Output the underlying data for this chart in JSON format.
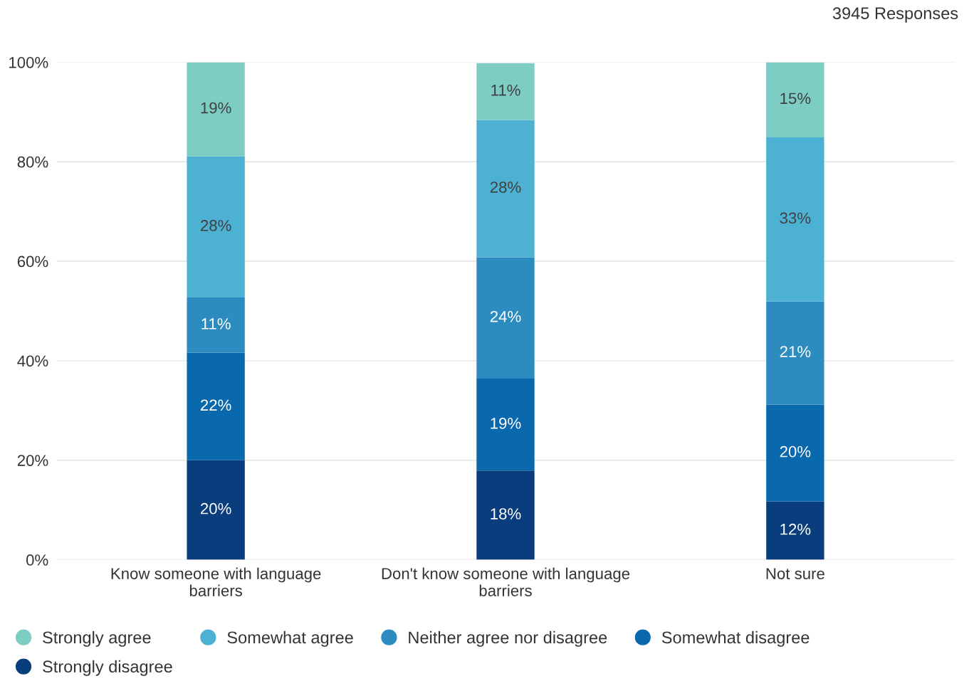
{
  "chart_data": {
    "type": "bar",
    "title": "3945 Responses",
    "stacked": true,
    "categories": [
      "Know someone with language barriers",
      "Don't know someone with language barriers",
      "Not sure"
    ],
    "series": [
      {
        "name": "Strongly disagree",
        "color": "#0a3d7d",
        "values": [
          20,
          17.9,
          11.7
        ],
        "value_labels": [
          "20%",
          "18%",
          "12%"
        ]
      },
      {
        "name": "Somewhat disagree",
        "color": "#0a69ac",
        "values": [
          21.6,
          18.5,
          19.5
        ],
        "value_labels": [
          "22%",
          "19%",
          "20%"
        ]
      },
      {
        "name": "Neither agree nor disagree",
        "color": "#2d8cbf",
        "values": [
          11.1,
          24.4,
          20.7
        ],
        "value_labels": [
          "11%",
          "24%",
          "21%"
        ]
      },
      {
        "name": "Somewhat agree",
        "color": "#4db1d3",
        "values": [
          28.4,
          27.6,
          33.0
        ],
        "value_labels": [
          "28%",
          "28%",
          "33%"
        ]
      },
      {
        "name": "Strongly agree",
        "color": "#7dcdc4",
        "values": [
          18.9,
          11.4,
          15.1
        ],
        "value_labels": [
          "19%",
          "11%",
          "15%"
        ]
      }
    ],
    "ylim": [
      0,
      100
    ],
    "yticks": [
      {
        "value": 0,
        "label": "0%"
      },
      {
        "value": 20,
        "label": "20%"
      },
      {
        "value": 40,
        "label": "40%"
      },
      {
        "value": 60,
        "label": "60%"
      },
      {
        "value": 80,
        "label": "80%"
      },
      {
        "value": 100,
        "label": "100%"
      }
    ],
    "grid": "y",
    "legend": "bottom",
    "marker": "circle"
  }
}
